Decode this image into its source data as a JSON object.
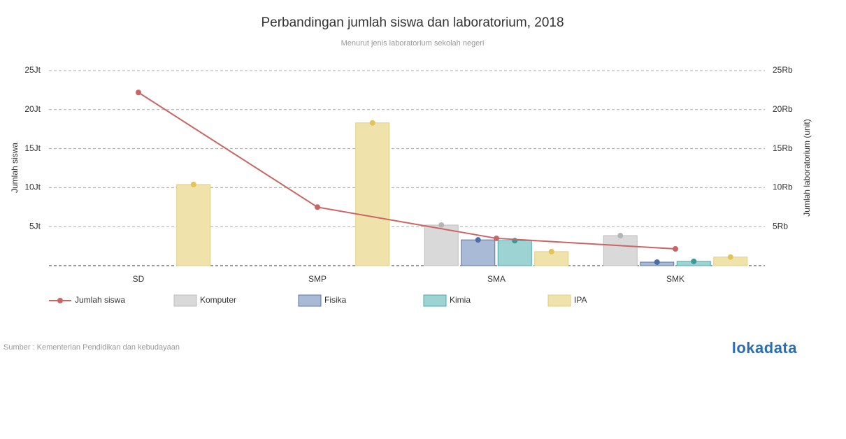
{
  "chart_data": {
    "type": "bar-line",
    "title": "Perbandingan jumlah siswa dan laboratorium, 2018",
    "subtitle": "Menurut jenis laboratorium sekolah negeri",
    "y_label": "Jumlah siswa",
    "y2_label": "Jumlah laboratorium (unit)",
    "categories": [
      "SD",
      "SMP",
      "SMA",
      "SMK"
    ],
    "ylim": [
      0,
      25000000
    ],
    "yticks": [
      {
        "value": 5000000,
        "label": "5Jt"
      },
      {
        "value": 10000000,
        "label": "10Jt"
      },
      {
        "value": 15000000,
        "label": "15Jt"
      },
      {
        "value": 20000000,
        "label": "20Jt"
      },
      {
        "value": 25000000,
        "label": "25Jt"
      }
    ],
    "y2lim": [
      0,
      25000
    ],
    "y2ticks": [
      {
        "value": 5000,
        "label": "5Rb"
      },
      {
        "value": 10000,
        "label": "10Rb"
      },
      {
        "value": 15000,
        "label": "15Rb"
      },
      {
        "value": 20000,
        "label": "20Rb"
      },
      {
        "value": 25000,
        "label": "25Rb"
      }
    ],
    "grid": true,
    "legend": "bottom-left",
    "series": [
      {
        "name": "Jumlah siswa",
        "type": "line",
        "color": "#c96565",
        "values": [
          22200000,
          7500000,
          3500000,
          2150000
        ]
      },
      {
        "name": "Komputer",
        "type": "bar",
        "axis": "y2",
        "color": "#d9d9d9",
        "stroke": "#bdbdbd",
        "marker_color": "#b5b5b5",
        "values": [
          null,
          null,
          5200,
          3850
        ]
      },
      {
        "name": "Fisika",
        "type": "bar",
        "axis": "y2",
        "color": "#a8bad6",
        "stroke": "#5a76a8",
        "marker_color": "#4a6fa5",
        "values": [
          null,
          null,
          3300,
          450
        ]
      },
      {
        "name": "Kimia",
        "type": "bar",
        "axis": "y2",
        "color": "#9dd3d3",
        "stroke": "#4aa8a8",
        "marker_color": "#3a9a9a",
        "values": [
          null,
          null,
          3200,
          550
        ]
      },
      {
        "name": "IPA",
        "type": "bar",
        "axis": "y2",
        "color": "#f0e2ab",
        "stroke": "#e0cf80",
        "marker_color": "#e0c45a",
        "values": [
          10400,
          18300,
          1800,
          1100
        ]
      }
    ]
  },
  "source": "Sumber : Kementerian Pendidikan dan kebudayaan",
  "logo": "lokadata"
}
